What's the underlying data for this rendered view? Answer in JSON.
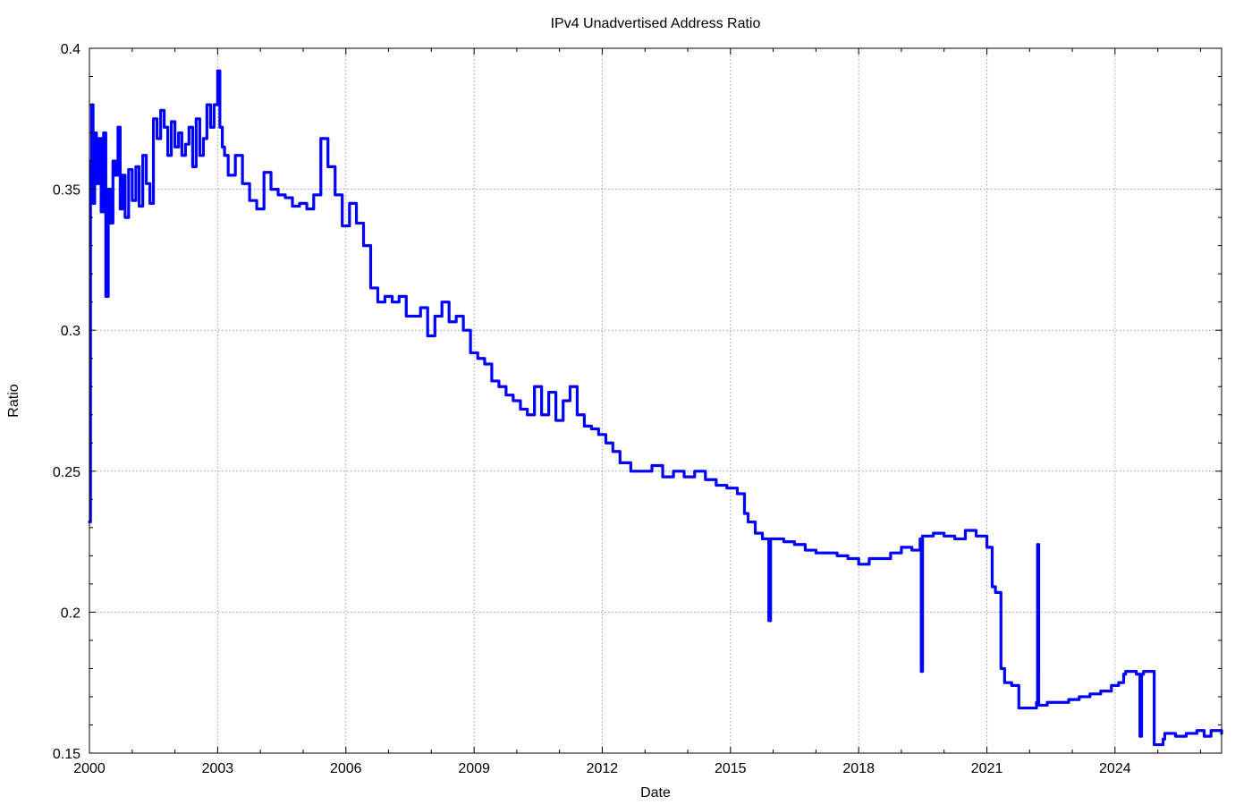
{
  "chart_data": {
    "type": "line",
    "title": "IPv4 Unadvertised Address Ratio",
    "xlabel": "Date",
    "ylabel": "Ratio",
    "xlim": [
      "2000-01-01",
      "2026-06-30"
    ],
    "ylim": [
      0.15,
      0.4
    ],
    "x_major_ticks": [
      "2000",
      "2003",
      "2006",
      "2009",
      "2012",
      "2015",
      "2018",
      "2021",
      "2024"
    ],
    "y_ticks": [
      "0.15",
      "0.2",
      "0.25",
      "0.3",
      "0.35",
      "0.4"
    ],
    "grid": true,
    "legend": "none",
    "line_color": "#0000ff",
    "series": [
      {
        "x": [
          "2000-01-01",
          "2000-01-10",
          "2000-01-20",
          "2000-02-01",
          "2000-02-15",
          "2000-03-01",
          "2000-03-20",
          "2000-04-10",
          "2000-05-01",
          "2000-05-20",
          "2000-06-10",
          "2000-07-01",
          "2000-07-20",
          "2000-08-10",
          "2000-09-01",
          "2000-09-20",
          "2000-10-10",
          "2000-11-01",
          "2000-12-01",
          "2001-01-01",
          "2001-02-01",
          "2001-03-01",
          "2001-04-01",
          "2001-05-01",
          "2001-06-01",
          "2001-07-01",
          "2001-08-01",
          "2001-09-01",
          "2001-10-01",
          "2001-11-01",
          "2001-12-01",
          "2002-01-01",
          "2002-02-01",
          "2002-03-01",
          "2002-04-01",
          "2002-05-01",
          "2002-06-01",
          "2002-07-01",
          "2002-08-01",
          "2002-09-01",
          "2002-10-01",
          "2002-11-01",
          "2002-12-01",
          "2003-01-01",
          "2003-01-20",
          "2003-02-10",
          "2003-03-01",
          "2003-04-01",
          "2003-06-01",
          "2003-08-01",
          "2003-10-01",
          "2003-12-01",
          "2004-02-01",
          "2004-04-01",
          "2004-06-01",
          "2004-08-01",
          "2004-10-01",
          "2004-12-01",
          "2005-02-01",
          "2005-04-01",
          "2005-06-01",
          "2005-08-01",
          "2005-10-01",
          "2005-12-01",
          "2006-02-01",
          "2006-04-01",
          "2006-06-01",
          "2006-08-01",
          "2006-10-01",
          "2006-12-01",
          "2007-02-01",
          "2007-04-01",
          "2007-06-01",
          "2007-08-01",
          "2007-10-01",
          "2007-12-01",
          "2008-02-01",
          "2008-04-01",
          "2008-06-01",
          "2008-08-01",
          "2008-10-01",
          "2008-12-01",
          "2009-02-01",
          "2009-04-01",
          "2009-06-01",
          "2009-08-01",
          "2009-10-01",
          "2009-12-01",
          "2010-02-01",
          "2010-04-01",
          "2010-06-01",
          "2010-08-01",
          "2010-10-01",
          "2010-12-01",
          "2011-02-01",
          "2011-04-01",
          "2011-06-01",
          "2011-08-01",
          "2011-10-01",
          "2011-12-01",
          "2012-02-01",
          "2012-04-01",
          "2012-06-01",
          "2012-09-01",
          "2012-12-01",
          "2013-03-01",
          "2013-06-01",
          "2013-09-01",
          "2013-12-01",
          "2014-03-01",
          "2014-06-01",
          "2014-09-01",
          "2014-12-01",
          "2015-03-01",
          "2015-05-01",
          "2015-06-01",
          "2015-08-01",
          "2015-10-01",
          "2015-11-25",
          "2015-12-10",
          "2016-01-01",
          "2016-04-01",
          "2016-07-01",
          "2016-10-01",
          "2017-01-01",
          "2017-04-01",
          "2017-07-01",
          "2017-10-01",
          "2018-01-01",
          "2018-04-01",
          "2018-07-01",
          "2018-10-01",
          "2019-01-01",
          "2019-04-01",
          "2019-06-10",
          "2019-06-20",
          "2019-07-01",
          "2019-10-01",
          "2020-01-01",
          "2020-04-01",
          "2020-07-01",
          "2020-10-01",
          "2021-01-01",
          "2021-02-15",
          "2021-03-15",
          "2021-05-01",
          "2021-06-01",
          "2021-08-01",
          "2021-10-01",
          "2022-01-01",
          "2022-03-01",
          "2022-03-10",
          "2022-03-20",
          "2022-06-01",
          "2022-09-01",
          "2022-12-01",
          "2023-03-01",
          "2023-06-01",
          "2023-09-01",
          "2023-12-01",
          "2024-02-01",
          "2024-03-15",
          "2024-04-01",
          "2024-07-01",
          "2024-08-01",
          "2024-08-15",
          "2024-09-01",
          "2024-12-01",
          "2025-02-15",
          "2025-03-01",
          "2025-06-01",
          "2025-09-01",
          "2025-12-01",
          "2026-02-01",
          "2026-04-01",
          "2026-06-30"
        ],
        "values": [
          0.232,
          0.36,
          0.38,
          0.345,
          0.37,
          0.352,
          0.368,
          0.342,
          0.37,
          0.312,
          0.35,
          0.338,
          0.36,
          0.355,
          0.372,
          0.343,
          0.355,
          0.34,
          0.357,
          0.346,
          0.358,
          0.344,
          0.362,
          0.352,
          0.345,
          0.375,
          0.368,
          0.378,
          0.372,
          0.362,
          0.374,
          0.365,
          0.37,
          0.362,
          0.366,
          0.372,
          0.358,
          0.375,
          0.362,
          0.368,
          0.38,
          0.372,
          0.38,
          0.392,
          0.372,
          0.365,
          0.362,
          0.355,
          0.362,
          0.352,
          0.346,
          0.343,
          0.356,
          0.35,
          0.348,
          0.347,
          0.344,
          0.345,
          0.343,
          0.348,
          0.368,
          0.358,
          0.348,
          0.337,
          0.345,
          0.338,
          0.33,
          0.315,
          0.31,
          0.312,
          0.31,
          0.312,
          0.305,
          0.305,
          0.308,
          0.298,
          0.305,
          0.31,
          0.303,
          0.305,
          0.3,
          0.292,
          0.29,
          0.288,
          0.282,
          0.28,
          0.277,
          0.275,
          0.272,
          0.27,
          0.28,
          0.27,
          0.278,
          0.268,
          0.275,
          0.28,
          0.27,
          0.266,
          0.265,
          0.263,
          0.26,
          0.257,
          0.253,
          0.25,
          0.25,
          0.252,
          0.248,
          0.25,
          0.248,
          0.25,
          0.247,
          0.245,
          0.244,
          0.242,
          0.235,
          0.232,
          0.228,
          0.226,
          0.197,
          0.226,
          0.226,
          0.225,
          0.224,
          0.222,
          0.221,
          0.221,
          0.22,
          0.219,
          0.217,
          0.219,
          0.219,
          0.221,
          0.223,
          0.222,
          0.226,
          0.179,
          0.227,
          0.228,
          0.227,
          0.226,
          0.229,
          0.227,
          0.223,
          0.209,
          0.207,
          0.18,
          0.175,
          0.174,
          0.166,
          0.166,
          0.168,
          0.224,
          0.167,
          0.168,
          0.168,
          0.169,
          0.17,
          0.171,
          0.172,
          0.174,
          0.175,
          0.178,
          0.179,
          0.178,
          0.156,
          0.178,
          0.179,
          0.153,
          0.155,
          0.157,
          0.156,
          0.157,
          0.158,
          0.156,
          0.158,
          0.157
        ]
      }
    ]
  }
}
